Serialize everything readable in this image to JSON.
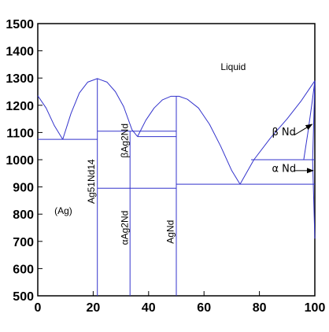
{
  "chart_data": {
    "type": "line",
    "title": "",
    "xlabel": "",
    "ylabel": "",
    "xlim": [
      0,
      100
    ],
    "ylim": [
      500,
      1500
    ],
    "xticks": [
      "0",
      "20",
      "40",
      "60",
      "80",
      "100"
    ],
    "yticks": [
      "500",
      "600",
      "700",
      "800",
      "900",
      "1000",
      "1100",
      "1200",
      "1300",
      "1400",
      "1500"
    ],
    "line_color": "#3333cc",
    "grid": false,
    "liquidus": [
      {
        "name": "",
        "x": [
          0,
          3,
          6,
          9
        ],
        "y": [
          1235,
          1190,
          1125,
          1075
        ]
      },
      {
        "name": "",
        "x": [
          9,
          12,
          15,
          18,
          21.5,
          25,
          28,
          31,
          34,
          36
        ],
        "y": [
          1075,
          1170,
          1245,
          1285,
          1298,
          1285,
          1250,
          1195,
          1110,
          1085
        ]
      },
      {
        "name": "",
        "x": [
          36,
          39,
          42,
          45,
          48,
          51,
          54,
          58,
          62,
          66,
          70,
          73
        ],
        "y": [
          1085,
          1145,
          1190,
          1220,
          1233,
          1233,
          1222,
          1190,
          1130,
          1050,
          960,
          910
        ]
      },
      {
        "name": "",
        "x": [
          73,
          78,
          84,
          90,
          95,
          100
        ],
        "y": [
          910,
          1000,
          1080,
          1150,
          1215,
          1290
        ]
      }
    ],
    "invariant_lines": [
      {
        "name": "",
        "x": [
          0,
          21.5
        ],
        "y": [
          1075,
          1075
        ]
      },
      {
        "name": "",
        "x": [
          21.5,
          50
        ],
        "y": [
          1105,
          1105
        ]
      },
      {
        "name": "",
        "x": [
          36,
          50
        ],
        "y": [
          1085,
          1085
        ]
      },
      {
        "name": "",
        "x": [
          21.5,
          50
        ],
        "y": [
          895,
          895
        ]
      },
      {
        "name": "",
        "x": [
          50,
          100
        ],
        "y": [
          910,
          910
        ]
      },
      {
        "name": "",
        "x": [
          77,
          100
        ],
        "y": [
          1000,
          1000
        ]
      }
    ],
    "compound_lines": [
      {
        "name": "",
        "x": [
          21.5,
          21.5
        ],
        "y": [
          500,
          1298
        ]
      },
      {
        "name": "",
        "x": [
          33.3,
          33.3
        ],
        "y": [
          500,
          1105
        ]
      },
      {
        "name": "",
        "x": [
          50,
          50
        ],
        "y": [
          500,
          1233
        ]
      }
    ],
    "nd_solvus": [
      {
        "name": "",
        "x": [
          96,
          97.5,
          99,
          100
        ],
        "y": [
          1000,
          1100,
          1210,
          1290
        ]
      },
      {
        "name": "",
        "x": [
          100,
          99.5,
          99.2
        ],
        "y": [
          1290,
          1100,
          1000
        ]
      },
      {
        "name": "",
        "x": [
          99.2,
          99.6,
          100
        ],
        "y": [
          1000,
          850,
          710
        ]
      }
    ],
    "annotations": [
      {
        "text": "Liquid",
        "x": 66,
        "y": 1330,
        "cls": "region",
        "rotate": false
      },
      {
        "text": "(Ag)",
        "x": 6,
        "y": 800,
        "cls": "region",
        "rotate": false
      },
      {
        "text": "Ag51Nd14",
        "x": 20.5,
        "y": 920,
        "cls": "compound",
        "rotate": true
      },
      {
        "text": "βAg2Nd",
        "x": 32.5,
        "y": 1070,
        "cls": "compound",
        "rotate": true
      },
      {
        "text": "αAg2Nd",
        "x": 32.5,
        "y": 750,
        "cls": "compound",
        "rotate": true
      },
      {
        "text": "AgNd",
        "x": 49,
        "y": 735,
        "cls": "compound",
        "rotate": true
      },
      {
        "text": "β Nd",
        "x": 84.5,
        "y": 1090,
        "cls": "phase",
        "rotate": false
      },
      {
        "text": "α Nd",
        "x": 84.5,
        "y": 955,
        "cls": "phase",
        "rotate": false
      }
    ],
    "arrows": [
      {
        "from": [
          92.5,
          1090
        ],
        "to": [
          99,
          1130
        ]
      },
      {
        "from": [
          92.5,
          960
        ],
        "to": [
          99.4,
          960
        ]
      }
    ]
  }
}
